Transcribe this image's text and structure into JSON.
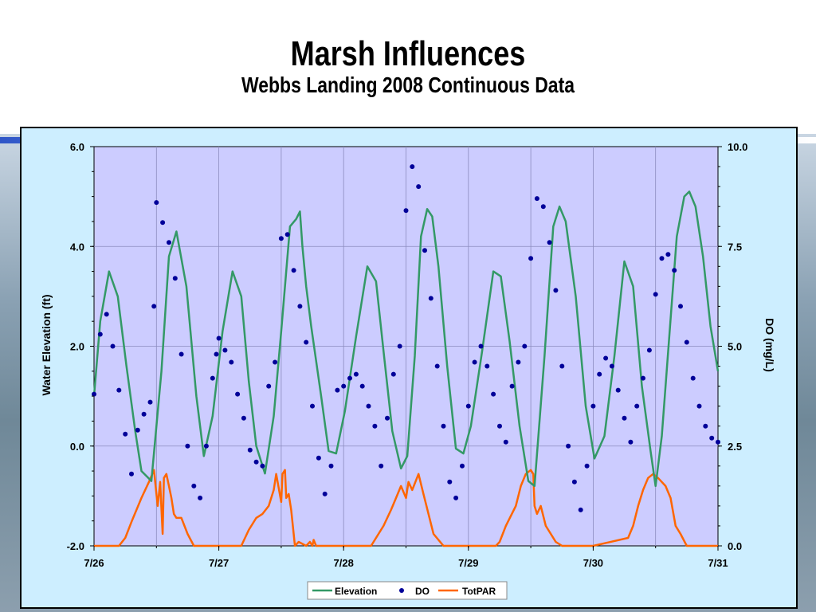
{
  "slide": {
    "title": "Marsh Influences",
    "subtitle": "Webbs Landing 2008 Continuous Data"
  },
  "chart_data": {
    "type": "line",
    "y_left": {
      "label": "Water Elevation (ft)",
      "lim": [
        -2.0,
        6.0
      ],
      "ticks": [
        "-2.0",
        "0.0",
        "2.0",
        "4.0",
        "6.0"
      ]
    },
    "y_right": {
      "label": "DO (mg/L)",
      "lim": [
        0.0,
        10.0
      ],
      "ticks": [
        "0.0",
        "2.5",
        "5.0",
        "7.5",
        "10.0"
      ]
    },
    "x": {
      "lim": [
        26,
        31
      ],
      "ticks": [
        "7/26",
        "7/27",
        "7/28",
        "7/29",
        "7/30",
        "7/31"
      ],
      "grid_step": 0.5
    },
    "grid": true,
    "legend_position": "bottom-center",
    "plot_bg": "#ccccff",
    "series": [
      {
        "name": "Elevation",
        "kind": "line",
        "axis": "left",
        "color": "#339966",
        "x": [
          26.0,
          26.05,
          26.12,
          26.19,
          26.26,
          26.33,
          26.38,
          26.46,
          26.54,
          26.6,
          26.66,
          26.74,
          26.82,
          26.88,
          26.95,
          27.03,
          27.11,
          27.18,
          27.24,
          27.3,
          27.37,
          27.44,
          27.5,
          27.57,
          27.62,
          27.65,
          27.67,
          27.7,
          27.74,
          27.82,
          27.88,
          27.94,
          28.01,
          28.1,
          28.19,
          28.26,
          28.32,
          28.39,
          28.46,
          28.51,
          28.57,
          28.62,
          28.67,
          28.71,
          28.76,
          28.83,
          28.9,
          28.96,
          29.02,
          29.11,
          29.2,
          29.26,
          29.33,
          29.41,
          29.48,
          29.53,
          29.61,
          29.68,
          29.73,
          29.78,
          29.86,
          29.94,
          30.01,
          30.09,
          30.17,
          30.25,
          30.32,
          30.39,
          30.46,
          30.5,
          30.55,
          30.61,
          30.67,
          30.73,
          30.77,
          30.82,
          30.88,
          30.94,
          31.0
        ],
        "y": [
          1.0,
          2.5,
          3.5,
          3.0,
          1.6,
          0.3,
          -0.5,
          -0.7,
          1.5,
          3.8,
          4.3,
          3.2,
          1.0,
          -0.2,
          0.6,
          2.3,
          3.5,
          3.0,
          1.3,
          0.0,
          -0.55,
          0.6,
          2.3,
          4.4,
          4.55,
          4.7,
          4.0,
          3.2,
          2.4,
          1.0,
          -0.1,
          -0.15,
          0.7,
          2.2,
          3.6,
          3.3,
          1.9,
          0.3,
          -0.45,
          -0.2,
          1.8,
          4.2,
          4.75,
          4.6,
          3.6,
          1.6,
          -0.05,
          -0.15,
          0.4,
          1.9,
          3.5,
          3.4,
          2.1,
          0.4,
          -0.7,
          -0.8,
          1.8,
          4.4,
          4.8,
          4.5,
          3.0,
          0.8,
          -0.25,
          0.2,
          1.8,
          3.7,
          3.2,
          1.2,
          -0.1,
          -0.8,
          0.2,
          2.2,
          4.2,
          5.0,
          5.1,
          4.8,
          3.8,
          2.4,
          1.5
        ]
      },
      {
        "name": "DO",
        "kind": "scatter",
        "axis": "right",
        "color": "#000099",
        "x": [
          26.0,
          26.05,
          26.1,
          26.15,
          26.2,
          26.25,
          26.3,
          26.35,
          26.4,
          26.45,
          26.48,
          26.5,
          26.55,
          26.6,
          26.65,
          26.7,
          26.75,
          26.8,
          26.85,
          26.9,
          26.95,
          26.98,
          27.0,
          27.05,
          27.1,
          27.15,
          27.2,
          27.25,
          27.3,
          27.35,
          27.4,
          27.45,
          27.5,
          27.55,
          27.6,
          27.65,
          27.7,
          27.75,
          27.8,
          27.85,
          27.9,
          27.95,
          28.0,
          28.05,
          28.1,
          28.15,
          28.2,
          28.25,
          28.3,
          28.35,
          28.4,
          28.45,
          28.5,
          28.55,
          28.6,
          28.65,
          28.7,
          28.75,
          28.8,
          28.85,
          28.9,
          28.95,
          29.0,
          29.05,
          29.1,
          29.15,
          29.2,
          29.25,
          29.3,
          29.35,
          29.4,
          29.45,
          29.5,
          29.55,
          29.6,
          29.65,
          29.7,
          29.75,
          29.8,
          29.85,
          29.9,
          29.95,
          30.0,
          30.05,
          30.1,
          30.15,
          30.2,
          30.25,
          30.3,
          30.35,
          30.4,
          30.45,
          30.5,
          30.55,
          30.6,
          30.65,
          30.7,
          30.75,
          30.8,
          30.85,
          30.9,
          30.95,
          31.0
        ],
        "y": [
          3.8,
          5.3,
          5.8,
          5.0,
          3.9,
          2.8,
          1.8,
          2.9,
          3.3,
          3.6,
          6.0,
          8.6,
          8.1,
          7.6,
          6.7,
          4.8,
          2.5,
          1.5,
          1.2,
          2.5,
          4.2,
          4.8,
          5.2,
          4.9,
          4.6,
          3.8,
          3.2,
          2.4,
          2.1,
          2.0,
          4.0,
          4.6,
          7.7,
          7.8,
          6.9,
          6.0,
          5.1,
          3.5,
          2.2,
          1.3,
          2.0,
          3.9,
          4.0,
          4.2,
          4.3,
          4.0,
          3.5,
          3.0,
          2.0,
          3.2,
          4.3,
          5.0,
          8.4,
          9.5,
          9.0,
          7.4,
          6.2,
          4.5,
          3.0,
          1.6,
          1.2,
          2.0,
          3.5,
          4.6,
          5.0,
          4.5,
          3.8,
          3.0,
          2.6,
          4.0,
          4.6,
          5.0,
          7.2,
          8.7,
          8.5,
          7.6,
          6.4,
          4.5,
          2.5,
          1.6,
          0.9,
          2.0,
          3.5,
          4.3,
          4.7,
          4.5,
          3.9,
          3.2,
          2.6,
          3.5,
          4.2,
          4.9,
          6.3,
          7.2,
          7.3,
          6.9,
          6.0,
          5.1,
          4.2,
          3.5,
          3.0,
          2.7,
          2.6
        ]
      },
      {
        "name": "TotPAR",
        "kind": "line",
        "axis": "right",
        "color": "#ff6600",
        "x": [
          26.0,
          26.2,
          26.25,
          26.3,
          26.38,
          26.44,
          26.48,
          26.5,
          26.51,
          26.53,
          26.55,
          26.56,
          26.58,
          26.6,
          26.62,
          26.64,
          26.66,
          26.7,
          26.75,
          26.8,
          27.0,
          27.18,
          27.24,
          27.3,
          27.35,
          27.4,
          27.44,
          27.46,
          27.5,
          27.51,
          27.53,
          27.54,
          27.56,
          27.58,
          27.61,
          27.64,
          27.7,
          27.73,
          27.75,
          27.76,
          27.78,
          27.8,
          28.0,
          28.22,
          28.28,
          28.32,
          28.38,
          28.42,
          28.46,
          28.5,
          28.52,
          28.55,
          28.6,
          28.64,
          28.68,
          28.72,
          28.8,
          29.0,
          29.22,
          29.25,
          29.3,
          29.38,
          29.42,
          29.46,
          29.5,
          29.52,
          29.53,
          29.55,
          29.58,
          29.62,
          29.66,
          29.7,
          29.75,
          29.8,
          30.0,
          30.28,
          30.32,
          30.36,
          30.4,
          30.44,
          30.48,
          30.52,
          30.55,
          30.58,
          30.62,
          30.66,
          30.7,
          30.75,
          30.8,
          31.0
        ],
        "y": [
          0.0,
          0.0,
          0.2,
          0.6,
          1.2,
          1.6,
          1.9,
          1.3,
          1.0,
          1.6,
          0.3,
          1.7,
          1.8,
          1.5,
          1.2,
          0.8,
          0.7,
          0.7,
          0.3,
          0.0,
          0.0,
          0.0,
          0.4,
          0.7,
          0.8,
          1.0,
          1.4,
          1.8,
          1.1,
          1.8,
          1.9,
          1.2,
          1.3,
          0.9,
          0.0,
          0.1,
          0.0,
          0.1,
          0.0,
          0.15,
          0.0,
          0.0,
          0.0,
          0.0,
          0.3,
          0.5,
          0.9,
          1.2,
          1.5,
          1.2,
          1.6,
          1.4,
          1.8,
          1.3,
          0.8,
          0.3,
          0.0,
          0.0,
          0.0,
          0.1,
          0.5,
          1.0,
          1.5,
          1.8,
          1.9,
          1.8,
          1.0,
          0.8,
          1.0,
          0.5,
          0.3,
          0.1,
          0.0,
          0.0,
          0.0,
          0.2,
          0.5,
          1.0,
          1.4,
          1.7,
          1.8,
          1.7,
          1.6,
          1.5,
          1.2,
          0.5,
          0.3,
          0.0,
          0.0,
          0.0
        ]
      }
    ]
  }
}
